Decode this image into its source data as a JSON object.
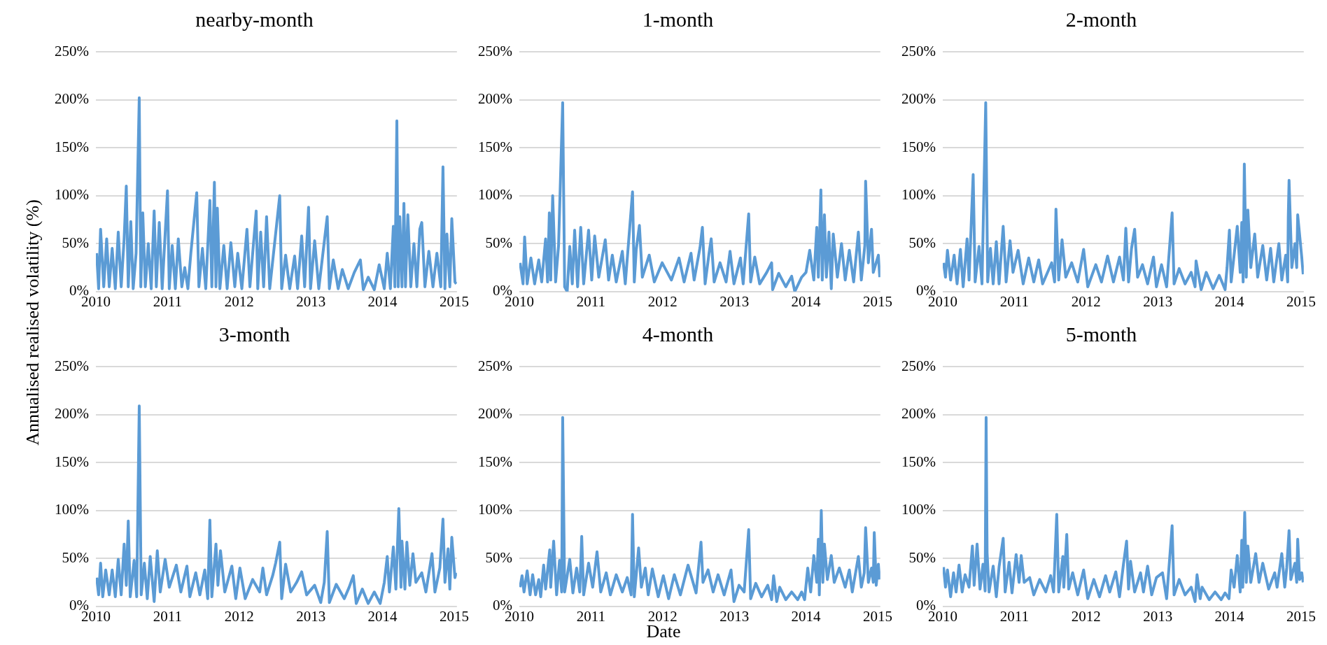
{
  "chart_data": [
    {
      "type": "line",
      "title": "nearby-month",
      "ylabel": "Annualised realised volatility (%)",
      "xlim": [
        "2010-01-01",
        "2015-01-15"
      ],
      "xticks": [
        "2010",
        "2011",
        "2012",
        "2013",
        "2014",
        "2015"
      ],
      "ylim": [
        0,
        250
      ],
      "yticks": [
        {
          "value": 0,
          "label": "0%"
        },
        {
          "value": 50,
          "label": "50%"
        },
        {
          "value": 100,
          "label": "100%"
        },
        {
          "value": 150,
          "label": "150%"
        },
        {
          "value": 200,
          "label": "200%"
        },
        {
          "value": 250,
          "label": "250%"
        }
      ],
      "grid": "y",
      "legend": false,
      "marker": "none",
      "line_style": "solid",
      "series": [
        {
          "color": "#5b9bd5",
          "x": [
            "2010-01-05",
            "2010-01-15",
            "2010-01-25",
            "2010-02-10",
            "2010-02-25",
            "2010-03-10",
            "2010-03-25",
            "2010-04-10",
            "2010-04-25",
            "2010-05-10",
            "2010-05-25",
            "2010-06-05",
            "2010-06-15",
            "2010-06-28",
            "2010-07-10",
            "2010-07-25",
            "2010-08-10",
            "2010-08-18",
            "2010-08-28",
            "2010-09-10",
            "2010-09-25",
            "2010-10-10",
            "2010-10-25",
            "2010-11-05",
            "2010-11-20",
            "2010-12-05",
            "2010-12-20",
            "2011-01-01",
            "2011-01-10",
            "2011-01-25",
            "2011-02-10",
            "2011-02-25",
            "2011-03-15",
            "2011-03-30",
            "2011-04-15",
            "2011-04-30",
            "2011-05-30",
            "2011-06-10",
            "2011-06-28",
            "2011-07-15",
            "2011-08-05",
            "2011-08-15",
            "2011-08-28",
            "2011-09-05",
            "2011-09-12",
            "2011-09-25",
            "2011-10-15",
            "2011-11-01",
            "2011-11-20",
            "2011-12-10",
            "2011-12-25",
            "2012-01-15",
            "2012-02-10",
            "2012-02-25",
            "2012-03-28",
            "2012-04-05",
            "2012-04-20",
            "2012-05-05",
            "2012-05-20",
            "2012-06-05",
            "2012-06-25",
            "2012-07-26",
            "2012-08-05",
            "2012-08-25",
            "2012-09-15",
            "2012-10-10",
            "2012-10-25",
            "2012-11-15",
            "2012-11-30",
            "2012-12-20",
            "2012-12-30",
            "2013-01-20",
            "2013-02-10",
            "2013-03-25",
            "2013-04-05",
            "2013-04-25",
            "2013-05-20",
            "2013-06-10",
            "2013-07-10",
            "2013-08-10",
            "2013-09-10",
            "2013-09-25",
            "2013-10-20",
            "2013-11-20",
            "2013-12-15",
            "2014-01-10",
            "2014-01-25",
            "2014-02-10",
            "2014-02-25",
            "2014-03-05",
            "2014-03-15",
            "2014-03-22",
            "2014-03-30",
            "2014-04-10",
            "2014-04-20",
            "2014-04-28",
            "2014-05-10",
            "2014-05-25",
            "2014-06-10",
            "2014-06-25",
            "2014-07-10",
            "2014-07-20",
            "2014-08-05",
            "2014-08-25",
            "2014-09-15",
            "2014-10-05",
            "2014-10-25",
            "2014-11-05",
            "2014-11-15",
            "2014-11-25",
            "2014-12-10",
            "2014-12-20",
            "2015-01-05",
            "2015-01-12"
          ],
          "values": [
            40,
            3,
            65,
            5,
            55,
            5,
            45,
            3,
            62,
            5,
            55,
            110,
            5,
            73,
            3,
            40,
            202,
            5,
            82,
            5,
            50,
            3,
            84,
            5,
            72,
            3,
            60,
            105,
            3,
            48,
            3,
            55,
            5,
            25,
            3,
            40,
            103,
            5,
            45,
            3,
            95,
            5,
            114,
            5,
            87,
            3,
            48,
            3,
            51,
            5,
            40,
            3,
            65,
            5,
            84,
            3,
            62,
            5,
            78,
            3,
            41,
            100,
            3,
            38,
            3,
            37,
            3,
            58,
            5,
            88,
            3,
            53,
            3,
            78,
            3,
            33,
            3,
            23,
            3,
            20,
            33,
            2,
            15,
            2,
            28,
            3,
            40,
            3,
            68,
            5,
            178,
            5,
            78,
            5,
            92,
            5,
            80,
            5,
            50,
            5,
            65,
            72,
            5,
            42,
            5,
            40,
            5,
            130,
            3,
            60,
            5,
            76,
            10,
            8
          ]
        }
      ]
    },
    {
      "type": "line",
      "title": "1-month",
      "xlim": [
        "2010-01-01",
        "2015-01-15"
      ],
      "xticks": [
        "2010",
        "2011",
        "2012",
        "2013",
        "2014",
        "2015"
      ],
      "ylim": [
        0,
        250
      ],
      "yticks": [
        {
          "value": 0,
          "label": "0%"
        },
        {
          "value": 50,
          "label": "50%"
        },
        {
          "value": 100,
          "label": "100%"
        },
        {
          "value": 150,
          "label": "150%"
        },
        {
          "value": 200,
          "label": "200%"
        },
        {
          "value": 250,
          "label": "250%"
        }
      ],
      "grid": "y",
      "legend": false,
      "marker": "none",
      "line_style": "solid",
      "series": [
        {
          "color": "#5b9bd5",
          "x": [
            "2010-01-05",
            "2010-01-20",
            "2010-01-28",
            "2010-02-10",
            "2010-03-01",
            "2010-03-20",
            "2010-04-10",
            "2010-04-25",
            "2010-05-15",
            "2010-05-25",
            "2010-06-03",
            "2010-06-10",
            "2010-06-20",
            "2010-07-05",
            "2010-07-20",
            "2010-08-10",
            "2010-08-20",
            "2010-09-02",
            "2010-09-15",
            "2010-09-28",
            "2010-10-10",
            "2010-10-25",
            "2010-11-10",
            "2010-11-25",
            "2010-12-20",
            "2011-01-05",
            "2011-01-20",
            "2011-02-10",
            "2011-03-15",
            "2011-04-01",
            "2011-04-20",
            "2011-05-10",
            "2011-06-10",
            "2011-06-25",
            "2011-08-01",
            "2011-08-10",
            "2011-08-20",
            "2011-09-05",
            "2011-09-20",
            "2011-10-25",
            "2011-11-20",
            "2011-12-30",
            "2012-02-15",
            "2012-03-25",
            "2012-04-20",
            "2012-05-25",
            "2012-06-10",
            "2012-07-10",
            "2012-07-22",
            "2012-08-05",
            "2012-08-25",
            "2012-09-05",
            "2012-09-20",
            "2012-10-20",
            "2012-11-20",
            "2012-12-10",
            "2012-12-30",
            "2013-02-01",
            "2013-02-15",
            "2013-03-15",
            "2013-03-25",
            "2013-04-15",
            "2013-05-10",
            "2013-06-15",
            "2013-07-10",
            "2013-07-15",
            "2013-08-15",
            "2013-09-20",
            "2013-10-20",
            "2013-11-05",
            "2013-12-10",
            "2014-01-01",
            "2014-01-20",
            "2014-02-10",
            "2014-02-25",
            "2014-03-05",
            "2014-03-18",
            "2014-03-25",
            "2014-04-05",
            "2014-04-15",
            "2014-04-28",
            "2014-05-10",
            "2014-05-20",
            "2014-06-10",
            "2014-07-01",
            "2014-07-20",
            "2014-08-10",
            "2014-09-01",
            "2014-09-25",
            "2014-10-10",
            "2014-10-28",
            "2014-11-01",
            "2014-11-15",
            "2014-12-01",
            "2014-12-10",
            "2015-01-05",
            "2015-01-12"
          ],
          "values": [
            30,
            8,
            57,
            8,
            35,
            8,
            33,
            10,
            55,
            10,
            82,
            12,
            100,
            10,
            48,
            197,
            5,
            0,
            47,
            8,
            64,
            5,
            67,
            8,
            64,
            12,
            58,
            15,
            54,
            12,
            38,
            10,
            42,
            8,
            104,
            10,
            44,
            69,
            15,
            38,
            10,
            30,
            12,
            35,
            10,
            40,
            12,
            46,
            67,
            8,
            40,
            55,
            10,
            30,
            10,
            42,
            8,
            35,
            8,
            81,
            10,
            36,
            8,
            20,
            30,
            2,
            19,
            5,
            16,
            0,
            15,
            20,
            43,
            12,
            67,
            15,
            106,
            12,
            80,
            15,
            62,
            3,
            60,
            15,
            50,
            12,
            43,
            10,
            62,
            12,
            48,
            115,
            30,
            65,
            20,
            38,
            15
          ]
        }
      ]
    },
    {
      "type": "line",
      "title": "2-month",
      "xlim": [
        "2010-01-01",
        "2015-01-15"
      ],
      "xticks": [
        "2010",
        "2011",
        "2012",
        "2013",
        "2014",
        "2015"
      ],
      "ylim": [
        0,
        250
      ],
      "yticks": [
        {
          "value": 0,
          "label": "0%"
        },
        {
          "value": 50,
          "label": "50%"
        },
        {
          "value": 100,
          "label": "100%"
        },
        {
          "value": 150,
          "label": "150%"
        },
        {
          "value": 200,
          "label": "200%"
        },
        {
          "value": 250,
          "label": "250%"
        }
      ],
      "grid": "y",
      "legend": false,
      "marker": "none",
      "line_style": "solid",
      "series": [
        {
          "color": "#5b9bd5",
          "x": [
            "2010-01-05",
            "2010-01-15",
            "2010-01-25",
            "2010-02-10",
            "2010-02-28",
            "2010-03-15",
            "2010-04-01",
            "2010-04-15",
            "2010-05-05",
            "2010-05-15",
            "2010-06-05",
            "2010-06-15",
            "2010-07-05",
            "2010-07-20",
            "2010-08-08",
            "2010-08-18",
            "2010-09-01",
            "2010-09-15",
            "2010-10-01",
            "2010-10-15",
            "2010-11-05",
            "2010-11-20",
            "2010-12-10",
            "2010-12-25",
            "2011-01-20",
            "2011-02-15",
            "2011-03-15",
            "2011-04-10",
            "2011-05-05",
            "2011-05-25",
            "2011-07-10",
            "2011-07-25",
            "2011-08-01",
            "2011-08-15",
            "2011-09-01",
            "2011-09-20",
            "2011-10-20",
            "2011-11-20",
            "2011-12-20",
            "2012-01-10",
            "2012-02-20",
            "2012-03-20",
            "2012-04-20",
            "2012-05-20",
            "2012-06-20",
            "2012-07-10",
            "2012-07-22",
            "2012-08-05",
            "2012-08-20",
            "2012-09-05",
            "2012-09-20",
            "2012-10-15",
            "2012-11-10",
            "2012-12-10",
            "2012-12-25",
            "2013-01-20",
            "2013-02-15",
            "2013-03-15",
            "2013-03-25",
            "2013-04-20",
            "2013-05-20",
            "2013-06-20",
            "2013-07-10",
            "2013-07-15",
            "2013-08-10",
            "2013-09-05",
            "2013-10-10",
            "2013-11-10",
            "2013-12-10",
            "2013-12-20",
            "2014-01-01",
            "2014-01-10",
            "2014-02-10",
            "2014-02-25",
            "2014-03-05",
            "2014-03-12",
            "2014-03-18",
            "2014-03-28",
            "2014-04-05",
            "2014-04-20",
            "2014-05-10",
            "2014-05-25",
            "2014-06-20",
            "2014-07-10",
            "2014-07-30",
            "2014-08-15",
            "2014-09-10",
            "2014-09-25",
            "2014-10-15",
            "2014-10-25",
            "2014-10-28",
            "2014-11-01",
            "2014-11-15",
            "2014-12-01",
            "2014-12-10",
            "2014-12-15",
            "2015-01-05",
            "2015-01-12"
          ],
          "values": [
            30,
            15,
            43,
            12,
            38,
            8,
            44,
            5,
            55,
            12,
            122,
            10,
            47,
            8,
            197,
            10,
            45,
            8,
            52,
            8,
            68,
            10,
            53,
            20,
            43,
            8,
            35,
            10,
            33,
            8,
            30,
            10,
            86,
            12,
            54,
            15,
            30,
            10,
            44,
            5,
            28,
            10,
            37,
            10,
            36,
            12,
            66,
            10,
            45,
            65,
            15,
            28,
            8,
            36,
            5,
            28,
            5,
            82,
            8,
            24,
            8,
            20,
            5,
            32,
            2,
            20,
            3,
            17,
            2,
            25,
            64,
            10,
            68,
            20,
            72,
            10,
            133,
            15,
            85,
            25,
            60,
            15,
            48,
            12,
            45,
            10,
            50,
            12,
            38,
            10,
            78,
            116,
            25,
            50,
            25,
            80,
            35,
            18
          ]
        }
      ]
    },
    {
      "type": "line",
      "title": "3-month",
      "xlim": [
        "2010-01-01",
        "2015-01-15"
      ],
      "xticks": [
        "2010",
        "2011",
        "2012",
        "2013",
        "2014",
        "2015"
      ],
      "ylim": [
        0,
        250
      ],
      "yticks": [
        {
          "value": 0,
          "label": "0%"
        },
        {
          "value": 50,
          "label": "50%"
        },
        {
          "value": 100,
          "label": "100%"
        },
        {
          "value": 150,
          "label": "150%"
        },
        {
          "value": 200,
          "label": "200%"
        },
        {
          "value": 250,
          "label": "250%"
        }
      ],
      "grid": "y",
      "legend": false,
      "marker": "none",
      "line_style": "solid",
      "series": [
        {
          "color": "#5b9bd5",
          "x": [
            "2010-01-05",
            "2010-01-15",
            "2010-01-25",
            "2010-02-05",
            "2010-02-20",
            "2010-03-10",
            "2010-03-25",
            "2010-04-10",
            "2010-04-25",
            "2010-05-10",
            "2010-05-25",
            "2010-06-05",
            "2010-06-15",
            "2010-06-25",
            "2010-07-15",
            "2010-07-28",
            "2010-08-10",
            "2010-08-20",
            "2010-09-05",
            "2010-09-20",
            "2010-10-05",
            "2010-10-25",
            "2010-11-10",
            "2010-11-25",
            "2010-12-20",
            "2011-01-10",
            "2011-02-15",
            "2011-03-10",
            "2011-04-10",
            "2011-04-25",
            "2011-05-25",
            "2011-06-15",
            "2011-07-10",
            "2011-07-25",
            "2011-08-05",
            "2011-08-15",
            "2011-09-05",
            "2011-09-15",
            "2011-09-28",
            "2011-10-20",
            "2011-11-25",
            "2011-12-15",
            "2012-01-05",
            "2012-02-01",
            "2012-03-10",
            "2012-04-15",
            "2012-05-01",
            "2012-05-20",
            "2012-06-20",
            "2012-07-05",
            "2012-07-26",
            "2012-08-05",
            "2012-08-25",
            "2012-09-20",
            "2012-10-20",
            "2012-11-15",
            "2012-12-10",
            "2013-01-20",
            "2013-02-20",
            "2013-03-10",
            "2013-03-25",
            "2013-04-05",
            "2013-05-10",
            "2013-06-20",
            "2013-07-15",
            "2013-08-05",
            "2013-08-20",
            "2013-09-20",
            "2013-10-20",
            "2013-11-20",
            "2013-12-20",
            "2014-01-10",
            "2014-01-25",
            "2014-02-05",
            "2014-02-25",
            "2014-03-10",
            "2014-03-25",
            "2014-04-05",
            "2014-04-10",
            "2014-04-25",
            "2014-05-05",
            "2014-05-20",
            "2014-06-05",
            "2014-06-20",
            "2014-07-20",
            "2014-08-10",
            "2014-09-10",
            "2014-09-25",
            "2014-10-20",
            "2014-11-05",
            "2014-11-15",
            "2014-12-01",
            "2014-12-10",
            "2014-12-20",
            "2015-01-05",
            "2015-01-12"
          ],
          "values": [
            30,
            12,
            45,
            10,
            38,
            12,
            38,
            10,
            49,
            12,
            65,
            22,
            89,
            10,
            48,
            10,
            209,
            12,
            45,
            8,
            52,
            5,
            58,
            15,
            49,
            20,
            43,
            15,
            42,
            10,
            35,
            12,
            38,
            8,
            90,
            10,
            65,
            22,
            58,
            15,
            42,
            8,
            40,
            8,
            28,
            15,
            40,
            12,
            32,
            45,
            67,
            8,
            44,
            15,
            25,
            36,
            12,
            22,
            4,
            25,
            78,
            4,
            23,
            8,
            20,
            32,
            3,
            18,
            3,
            15,
            3,
            25,
            52,
            15,
            62,
            18,
            102,
            20,
            68,
            18,
            67,
            22,
            55,
            25,
            35,
            15,
            55,
            15,
            40,
            91,
            25,
            60,
            18,
            72,
            30,
            35
          ]
        }
      ]
    },
    {
      "type": "line",
      "title": "4-month",
      "xlabel": "Date",
      "xlim": [
        "2010-01-01",
        "2015-01-15"
      ],
      "xticks": [
        "2010",
        "2011",
        "2012",
        "2013",
        "2014",
        "2015"
      ],
      "ylim": [
        0,
        250
      ],
      "yticks": [
        {
          "value": 0,
          "label": "0%"
        },
        {
          "value": 50,
          "label": "50%"
        },
        {
          "value": 100,
          "label": "100%"
        },
        {
          "value": 150,
          "label": "150%"
        },
        {
          "value": 200,
          "label": "200%"
        },
        {
          "value": 250,
          "label": "250%"
        }
      ],
      "grid": "y",
      "legend": false,
      "marker": "none",
      "line_style": "solid",
      "series": [
        {
          "color": "#5b9bd5",
          "x": [
            "2010-01-05",
            "2010-01-15",
            "2010-01-25",
            "2010-02-10",
            "2010-02-25",
            "2010-03-10",
            "2010-03-25",
            "2010-04-10",
            "2010-04-20",
            "2010-05-05",
            "2010-05-15",
            "2010-06-05",
            "2010-06-10",
            "2010-06-25",
            "2010-07-10",
            "2010-07-25",
            "2010-08-05",
            "2010-08-10",
            "2010-08-20",
            "2010-09-15",
            "2010-10-01",
            "2010-10-20",
            "2010-11-05",
            "2010-11-15",
            "2010-11-25",
            "2010-12-20",
            "2011-01-10",
            "2011-02-01",
            "2011-02-20",
            "2011-03-20",
            "2011-04-10",
            "2011-05-10",
            "2011-06-10",
            "2011-07-05",
            "2011-07-25",
            "2011-08-01",
            "2011-08-10",
            "2011-09-01",
            "2011-09-15",
            "2011-10-05",
            "2011-10-20",
            "2011-11-10",
            "2011-12-10",
            "2012-01-05",
            "2012-02-01",
            "2012-03-01",
            "2012-04-01",
            "2012-05-10",
            "2012-06-20",
            "2012-07-15",
            "2012-07-25",
            "2012-08-20",
            "2012-09-15",
            "2012-10-10",
            "2012-11-10",
            "2012-12-15",
            "2012-12-30",
            "2013-01-25",
            "2013-02-20",
            "2013-03-15",
            "2013-03-25",
            "2013-04-20",
            "2013-05-20",
            "2013-06-20",
            "2013-07-10",
            "2013-07-20",
            "2013-08-05",
            "2013-08-20",
            "2013-09-20",
            "2013-10-20",
            "2013-11-20",
            "2013-12-10",
            "2013-12-25",
            "2014-01-10",
            "2014-01-25",
            "2014-02-10",
            "2014-02-25",
            "2014-03-05",
            "2014-03-10",
            "2014-03-20",
            "2014-03-28",
            "2014-04-05",
            "2014-04-20",
            "2014-05-10",
            "2014-05-25",
            "2014-06-20",
            "2014-07-20",
            "2014-08-10",
            "2014-08-25",
            "2014-09-25",
            "2014-10-10",
            "2014-10-25",
            "2014-11-01",
            "2014-11-15",
            "2014-12-01",
            "2014-12-10",
            "2014-12-15",
            "2014-12-25",
            "2015-01-05",
            "2015-01-12"
          ],
          "values": [
            20,
            32,
            15,
            37,
            12,
            33,
            12,
            28,
            10,
            43,
            18,
            59,
            20,
            68,
            12,
            48,
            15,
            197,
            15,
            49,
            14,
            40,
            15,
            73,
            12,
            45,
            20,
            57,
            15,
            35,
            12,
            33,
            15,
            30,
            12,
            96,
            10,
            61,
            20,
            40,
            12,
            39,
            10,
            32,
            8,
            33,
            12,
            43,
            14,
            67,
            25,
            38,
            15,
            33,
            12,
            38,
            5,
            22,
            15,
            80,
            8,
            24,
            10,
            22,
            7,
            32,
            5,
            20,
            7,
            15,
            7,
            15,
            7,
            40,
            15,
            53,
            25,
            70,
            12,
            100,
            25,
            65,
            28,
            53,
            25,
            40,
            20,
            38,
            15,
            52,
            20,
            35,
            82,
            25,
            40,
            25,
            77,
            22,
            44,
            28
          ]
        }
      ]
    },
    {
      "type": "line",
      "title": "5-month",
      "xlim": [
        "2010-01-01",
        "2015-01-15"
      ],
      "xticks": [
        "2010",
        "2011",
        "2012",
        "2013",
        "2014",
        "2015"
      ],
      "ylim": [
        0,
        250
      ],
      "yticks": [
        {
          "value": 0,
          "label": "0%"
        },
        {
          "value": 50,
          "label": "50%"
        },
        {
          "value": 100,
          "label": "100%"
        },
        {
          "value": 150,
          "label": "150%"
        },
        {
          "value": 200,
          "label": "200%"
        },
        {
          "value": 250,
          "label": "250%"
        }
      ],
      "grid": "y",
      "legend": false,
      "marker": "none",
      "line_style": "solid",
      "series": [
        {
          "color": "#5b9bd5",
          "x": [
            "2010-01-05",
            "2010-01-15",
            "2010-01-25",
            "2010-02-10",
            "2010-02-25",
            "2010-03-10",
            "2010-03-25",
            "2010-04-10",
            "2010-04-25",
            "2010-05-15",
            "2010-06-01",
            "2010-06-10",
            "2010-06-25",
            "2010-07-10",
            "2010-07-25",
            "2010-08-05",
            "2010-08-10",
            "2010-08-15",
            "2010-08-25",
            "2010-09-15",
            "2010-10-01",
            "2010-10-15",
            "2010-11-05",
            "2010-11-15",
            "2010-12-05",
            "2010-12-20",
            "2011-01-10",
            "2011-01-25",
            "2011-02-05",
            "2011-02-20",
            "2011-03-20",
            "2011-04-10",
            "2011-05-10",
            "2011-06-10",
            "2011-07-05",
            "2011-07-20",
            "2011-08-05",
            "2011-08-15",
            "2011-09-05",
            "2011-09-10",
            "2011-09-25",
            "2011-10-05",
            "2011-10-25",
            "2011-11-20",
            "2011-12-20",
            "2012-01-10",
            "2012-02-10",
            "2012-03-10",
            "2012-04-10",
            "2012-05-01",
            "2012-06-01",
            "2012-06-20",
            "2012-07-10",
            "2012-07-26",
            "2012-08-05",
            "2012-08-15",
            "2012-09-05",
            "2012-10-05",
            "2012-10-20",
            "2012-11-10",
            "2012-12-01",
            "2012-12-25",
            "2013-01-25",
            "2013-02-15",
            "2013-03-15",
            "2013-03-25",
            "2013-04-20",
            "2013-05-20",
            "2013-06-20",
            "2013-07-10",
            "2013-07-20",
            "2013-08-05",
            "2013-08-15",
            "2013-09-20",
            "2013-10-20",
            "2013-11-20",
            "2013-12-10",
            "2013-12-30",
            "2014-01-10",
            "2014-01-25",
            "2014-02-10",
            "2014-02-25",
            "2014-03-05",
            "2014-03-10",
            "2014-03-20",
            "2014-03-28",
            "2014-04-05",
            "2014-04-20",
            "2014-05-15",
            "2014-06-01",
            "2014-06-20",
            "2014-07-20",
            "2014-08-20",
            "2014-09-01",
            "2014-09-25",
            "2014-10-10",
            "2014-10-20",
            "2014-11-01",
            "2014-11-10",
            "2014-12-01",
            "2014-12-10",
            "2014-12-15",
            "2014-12-25",
            "2015-01-05",
            "2015-01-12"
          ],
          "values": [
            41,
            20,
            38,
            10,
            35,
            15,
            43,
            15,
            33,
            20,
            63,
            22,
            65,
            18,
            44,
            16,
            197,
            56,
            15,
            42,
            10,
            41,
            71,
            15,
            46,
            14,
            54,
            25,
            53,
            25,
            30,
            12,
            28,
            15,
            32,
            15,
            96,
            15,
            52,
            20,
            75,
            18,
            35,
            12,
            38,
            8,
            28,
            10,
            32,
            15,
            36,
            10,
            44,
            68,
            18,
            47,
            15,
            35,
            15,
            42,
            12,
            30,
            35,
            8,
            84,
            12,
            28,
            12,
            20,
            5,
            33,
            8,
            20,
            7,
            15,
            7,
            14,
            8,
            38,
            20,
            53,
            15,
            69,
            20,
            98,
            25,
            63,
            25,
            55,
            25,
            45,
            18,
            35,
            20,
            55,
            20,
            40,
            79,
            28,
            45,
            25,
            70,
            28,
            35,
            25
          ]
        }
      ]
    }
  ]
}
